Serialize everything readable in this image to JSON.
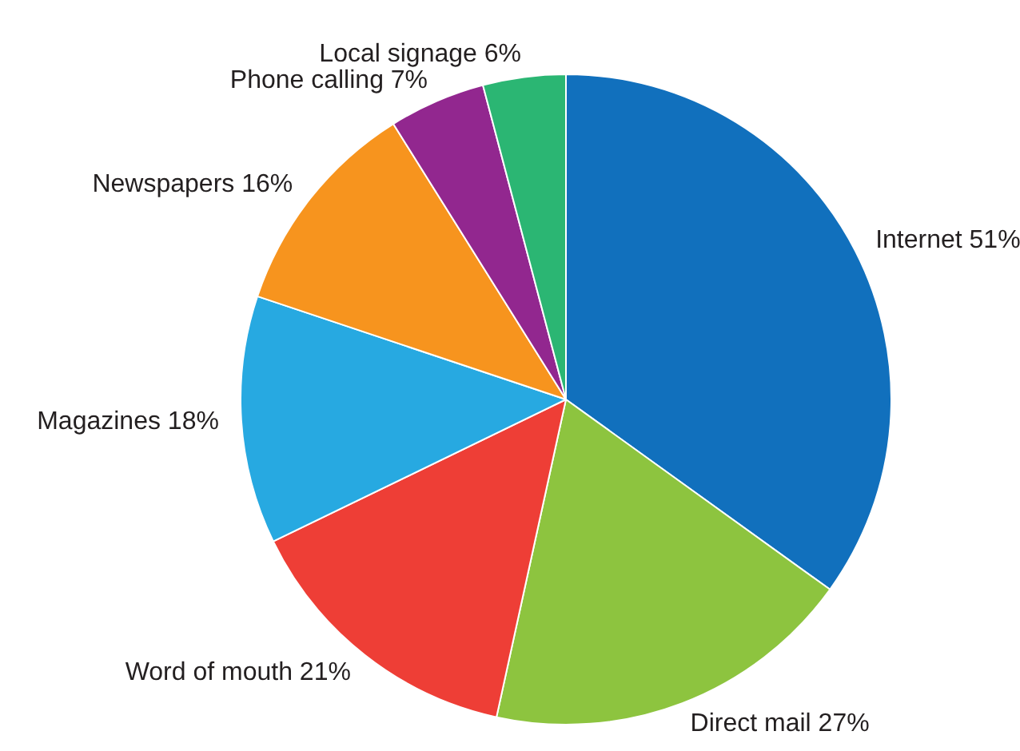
{
  "chart_data": {
    "type": "pie",
    "categories": [
      "Internet",
      "Direct mail",
      "Word of mouth",
      "Magazines",
      "Newspapers",
      "Phone calling",
      "Local signage"
    ],
    "values": [
      51,
      27,
      21,
      18,
      16,
      7,
      6
    ],
    "value_labels": [
      "51%",
      "27%",
      "21%",
      "18%",
      "16%",
      "7%",
      "6%"
    ],
    "colors": [
      "#1170bd",
      "#8dc43f",
      "#ee3e36",
      "#27a9e1",
      "#f7941e",
      "#92278f",
      "#2bb673"
    ],
    "legend": false
  }
}
